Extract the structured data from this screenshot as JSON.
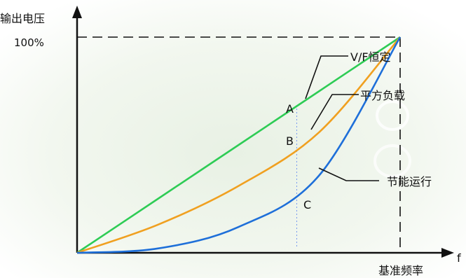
{
  "chart_data": {
    "type": "line",
    "ylabel": "输出电压",
    "ytick_label": "100%",
    "xlabel": "基准频率",
    "xlabel_edge": "f",
    "xlim": [
      0,
      1
    ],
    "ylim": [
      0,
      1
    ],
    "series": [
      {
        "name": "V/F恒定",
        "color": "#2ecc55",
        "x": [
          0,
          0.25,
          0.5,
          0.75,
          1.0
        ],
        "y": [
          0,
          0.25,
          0.5,
          0.75,
          1.0
        ]
      },
      {
        "name": "平方负载",
        "color": "#f0a020",
        "x": [
          0,
          0.25,
          0.5,
          0.75,
          1.0
        ],
        "y": [
          0,
          0.13,
          0.31,
          0.56,
          1.0
        ]
      },
      {
        "name": "节能运行",
        "color": "#1e6fd9",
        "x": [
          0,
          0.25,
          0.5,
          0.75,
          1.0
        ],
        "y": [
          0,
          0.02,
          0.12,
          0.36,
          1.0
        ]
      }
    ],
    "reference_point": {
      "x": 0.68
    },
    "point_labels": [
      {
        "label": "A",
        "series": 0
      },
      {
        "label": "B",
        "series": 1
      },
      {
        "label": "C",
        "series": 2
      }
    ]
  }
}
